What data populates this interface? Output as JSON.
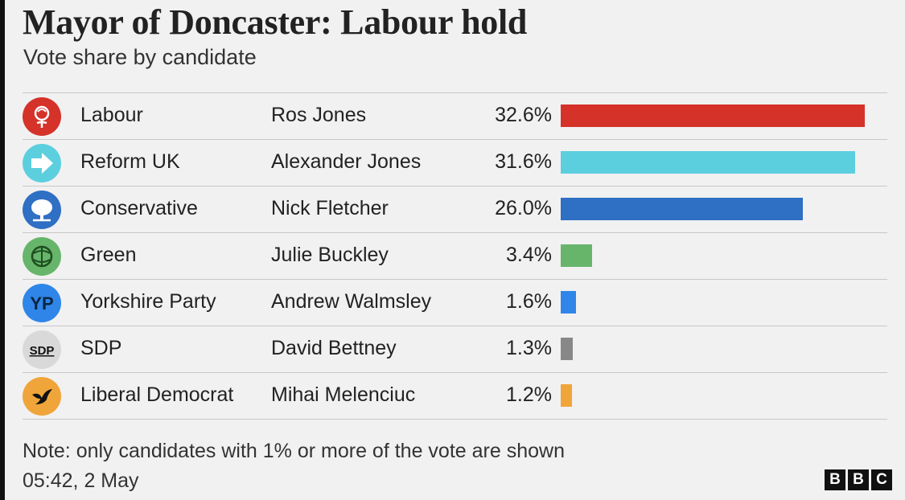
{
  "header": {
    "title": "Mayor of Doncaster: Labour hold",
    "subtitle": "Vote share by candidate"
  },
  "chart_data": {
    "type": "bar",
    "orientation": "horizontal",
    "title": "Mayor of Doncaster: Labour hold",
    "subtitle": "Vote share by candidate",
    "xlabel": "",
    "ylabel": "",
    "xlim": [
      0,
      32.6
    ],
    "grid": false,
    "rows": [
      {
        "party": "Labour",
        "candidate": "Ros Jones",
        "value": 32.6,
        "label": "32.6%",
        "color": "#d5322a",
        "icon": "labour-rose-icon"
      },
      {
        "party": "Reform UK",
        "candidate": "Alexander Jones",
        "value": 31.6,
        "label": "31.6%",
        "color": "#5ccfdf",
        "icon": "reform-arrow-icon"
      },
      {
        "party": "Conservative",
        "candidate": "Nick Fletcher",
        "value": 26.0,
        "label": "26.0%",
        "color": "#2f6fc4",
        "icon": "conservative-tree-icon"
      },
      {
        "party": "Green",
        "candidate": "Julie Buckley",
        "value": 3.4,
        "label": "3.4%",
        "color": "#67b56a",
        "icon": "green-globe-icon"
      },
      {
        "party": "Yorkshire Party",
        "candidate": "Andrew Walmsley",
        "value": 1.6,
        "label": "1.6%",
        "color": "#2f86e8",
        "icon": "yorkshire-party-icon"
      },
      {
        "party": "SDP",
        "candidate": "David Bettney",
        "value": 1.3,
        "label": "1.3%",
        "color": "#888888",
        "icon": "sdp-logo-icon"
      },
      {
        "party": "Liberal Democrat",
        "candidate": "Mihai Melenciuc",
        "value": 1.2,
        "label": "1.2%",
        "color": "#f0a53a",
        "icon": "lib-dem-bird-icon"
      }
    ]
  },
  "footer": {
    "note": "Note: only candidates with 1% or more of the vote are shown",
    "timestamp": "05:42,  2 May",
    "brand_letters": [
      "B",
      "B",
      "C"
    ]
  }
}
